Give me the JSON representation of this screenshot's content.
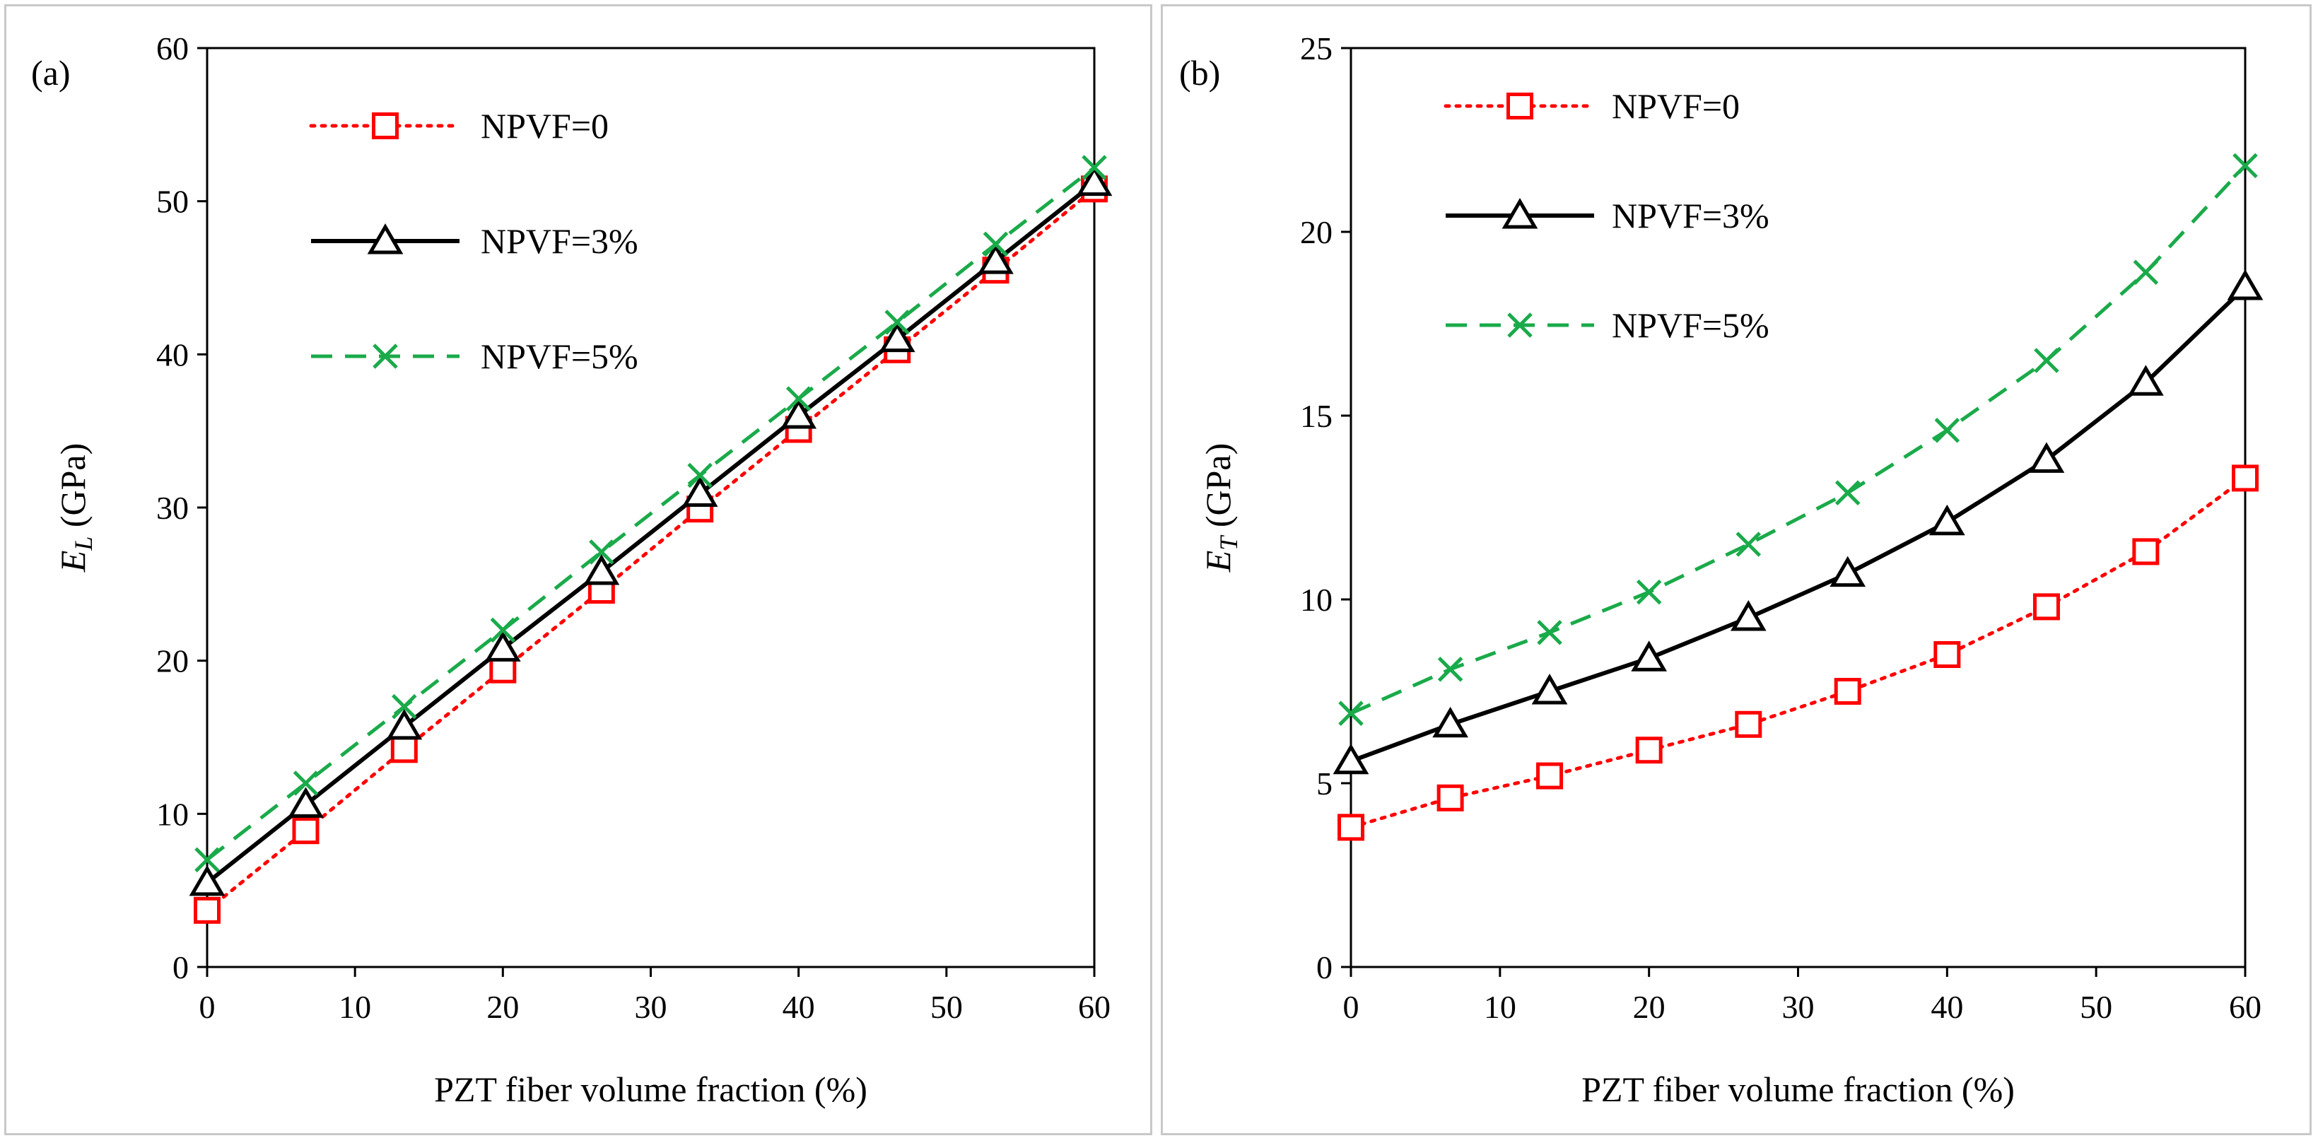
{
  "chart_data": [
    {
      "type": "line",
      "panel_label": "(a)",
      "xlabel": "PZT fiber volume fraction (%)",
      "ylabel_main": "E",
      "ylabel_sub": "L",
      "ylabel_unit": " (GPa)",
      "xlim": [
        0,
        60
      ],
      "ylim": [
        0,
        60
      ],
      "xticks": [
        0,
        10,
        20,
        30,
        40,
        50,
        60
      ],
      "yticks": [
        0,
        10,
        20,
        30,
        40,
        50,
        60
      ],
      "grid": false,
      "legend_position": "top-left",
      "x": [
        0,
        6.67,
        13.33,
        20,
        26.67,
        33.33,
        40,
        46.67,
        53.33,
        60
      ],
      "series": [
        {
          "name": "NPVF=0",
          "color": "#ff0000",
          "line": "dotted",
          "marker": "square",
          "values": [
            3.7,
            8.9,
            14.2,
            19.4,
            24.6,
            29.9,
            35.1,
            40.3,
            45.5,
            50.8
          ]
        },
        {
          "name": "NPVF=3%",
          "color": "#000000",
          "line": "solid",
          "marker": "triangle",
          "values": [
            5.5,
            10.6,
            15.7,
            20.8,
            25.8,
            30.9,
            36.0,
            41.0,
            46.1,
            51.2
          ]
        },
        {
          "name": "NPVF=5%",
          "color": "#1aaa4a",
          "line": "dashed",
          "marker": "x",
          "values": [
            7.0,
            12.0,
            17.0,
            22.0,
            27.1,
            32.1,
            37.1,
            42.1,
            47.2,
            52.2
          ]
        }
      ]
    },
    {
      "type": "line",
      "panel_label": "(b)",
      "xlabel": "PZT fiber volume fraction (%)",
      "ylabel_main": "E",
      "ylabel_sub": "T",
      "ylabel_unit": " (GPa)",
      "xlim": [
        0,
        60
      ],
      "ylim": [
        0,
        25
      ],
      "xticks": [
        0,
        10,
        20,
        30,
        40,
        50,
        60
      ],
      "yticks": [
        0,
        5,
        10,
        15,
        20,
        25
      ],
      "grid": false,
      "legend_position": "top-left",
      "x": [
        0,
        6.67,
        13.33,
        20,
        26.67,
        33.33,
        40,
        46.67,
        53.33,
        60
      ],
      "series": [
        {
          "name": "NPVF=0",
          "color": "#ff0000",
          "line": "dotted",
          "marker": "square",
          "values": [
            3.8,
            4.6,
            5.2,
            5.9,
            6.6,
            7.5,
            8.5,
            9.8,
            11.3,
            13.3
          ]
        },
        {
          "name": "NPVF=3%",
          "color": "#000000",
          "line": "solid",
          "marker": "triangle",
          "values": [
            5.6,
            6.6,
            7.5,
            8.4,
            9.5,
            10.7,
            12.1,
            13.8,
            15.9,
            18.5
          ]
        },
        {
          "name": "NPVF=5%",
          "color": "#1aaa4a",
          "line": "dashed",
          "marker": "x",
          "values": [
            6.9,
            8.1,
            9.1,
            10.2,
            11.5,
            12.9,
            14.6,
            16.5,
            18.9,
            21.8
          ]
        }
      ]
    }
  ]
}
